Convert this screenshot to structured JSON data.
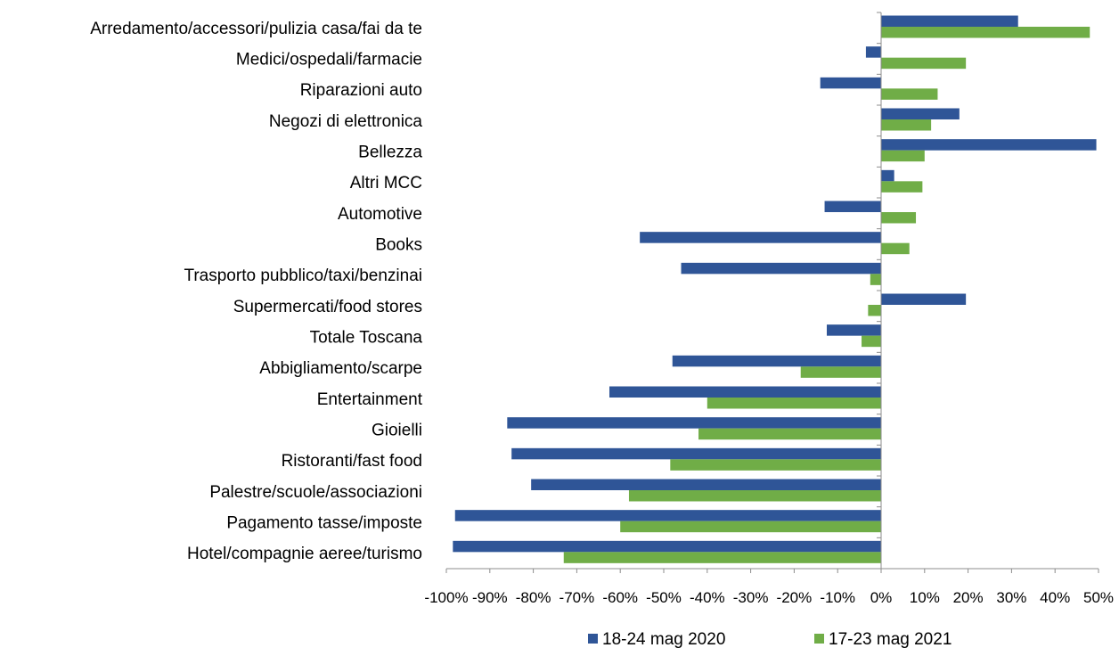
{
  "chart_data": {
    "type": "bar",
    "orientation": "horizontal",
    "categories": [
      "Arredamento/accessori/pulizia casa/fai da te",
      "Medici/ospedali/farmacie",
      "Riparazioni auto",
      "Negozi di elettronica",
      "Bellezza",
      "Altri MCC",
      "Automotive",
      "Books",
      "Trasporto pubblico/taxi/benzinai",
      "Supermercati/food stores",
      "Totale Toscana",
      "Abbigliamento/scarpe",
      "Entertainment",
      "Gioielli",
      "Ristoranti/fast food",
      "Palestre/scuole/associazioni",
      "Pagamento tasse/imposte",
      "Hotel/compagnie aeree/turismo"
    ],
    "series": [
      {
        "name": "18-24 mag 2020",
        "color": "#2f5597",
        "values": [
          31.5,
          -3.5,
          -14,
          18,
          49.5,
          3,
          -13,
          -55.5,
          -46,
          19.5,
          -12.5,
          -48,
          -62.5,
          -86,
          -85,
          -80.5,
          -98,
          -98.5
        ]
      },
      {
        "name": "17-23 mag 2021",
        "color": "#70ad47",
        "values": [
          48,
          19.5,
          13,
          11.5,
          10,
          9.5,
          8,
          6.5,
          -2.5,
          -3,
          -4.5,
          -18.5,
          -40,
          -42,
          -48.5,
          -58,
          -60,
          -73
        ]
      }
    ],
    "xlim": [
      -100,
      50
    ],
    "x_ticks": [
      "-100%",
      "-90%",
      "-80%",
      "-70%",
      "-60%",
      "-50%",
      "-40%",
      "-30%",
      "-20%",
      "-10%",
      "0%",
      "10%",
      "20%",
      "30%",
      "40%",
      "50%"
    ],
    "x_tick_values": [
      -100,
      -90,
      -80,
      -70,
      -60,
      -50,
      -40,
      -30,
      -20,
      -10,
      0,
      10,
      20,
      30,
      40,
      50
    ],
    "grid": false,
    "legend_position": "bottom"
  }
}
